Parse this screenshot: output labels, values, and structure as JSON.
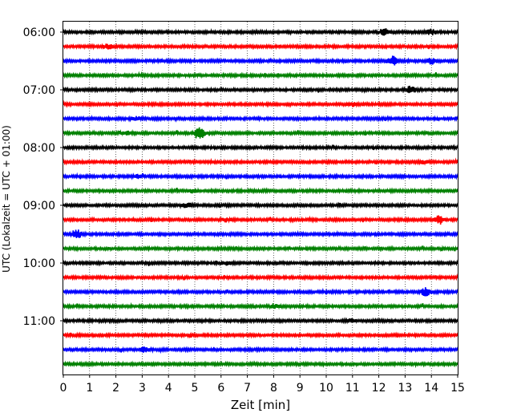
{
  "chart_data": {
    "type": "line",
    "title": "",
    "xlabel": "Zeit  [min]",
    "ylabel": "UTC (Lokalzeit = UTC + 01:00)",
    "xlim": [
      0,
      15
    ],
    "x_ticks": [
      "0",
      "1",
      "2",
      "3",
      "4",
      "5",
      "6",
      "7",
      "8",
      "9",
      "10",
      "11",
      "12",
      "13",
      "14",
      "15"
    ],
    "y_ticks": [
      "06:00",
      "07:00",
      "08:00",
      "09:00",
      "10:00",
      "11:00"
    ],
    "grid": "vertical dotted",
    "row_interval_min": 15,
    "trace_colors": [
      "#000000",
      "#ff0000",
      "#0000ff",
      "#008000"
    ],
    "traces": [
      {
        "start": "06:00",
        "color": "#000000",
        "events": [
          {
            "t": 12.2,
            "amp": 2.5
          },
          {
            "t": 14.0,
            "amp": 1.8
          }
        ]
      },
      {
        "start": "06:15",
        "color": "#ff0000",
        "events": [
          {
            "t": 1.7,
            "amp": 1.5
          }
        ]
      },
      {
        "start": "06:30",
        "color": "#0000ff",
        "events": [
          {
            "t": 12.5,
            "amp": 3.5
          },
          {
            "t": 14.0,
            "amp": 2.0
          }
        ]
      },
      {
        "start": "06:45",
        "color": "#008000",
        "events": []
      },
      {
        "start": "07:00",
        "color": "#000000",
        "events": [
          {
            "t": 13.2,
            "amp": 2.5
          }
        ]
      },
      {
        "start": "07:15",
        "color": "#ff0000",
        "events": [
          {
            "t": 11.0,
            "amp": 1.2
          }
        ]
      },
      {
        "start": "07:30",
        "color": "#0000ff",
        "events": [
          {
            "t": 2.8,
            "amp": 1.2
          }
        ]
      },
      {
        "start": "07:45",
        "color": "#008000",
        "events": [
          {
            "t": 5.2,
            "amp": 4.5
          },
          {
            "t": 2.4,
            "amp": 1.5
          }
        ]
      },
      {
        "start": "08:00",
        "color": "#000000",
        "events": []
      },
      {
        "start": "08:15",
        "color": "#ff0000",
        "events": [
          {
            "t": 13.7,
            "amp": 1.0
          }
        ]
      },
      {
        "start": "08:30",
        "color": "#0000ff",
        "events": [
          {
            "t": 2.9,
            "amp": 1.5
          }
        ]
      },
      {
        "start": "08:45",
        "color": "#008000",
        "events": [
          {
            "t": 4.9,
            "amp": 1.2
          }
        ]
      },
      {
        "start": "09:00",
        "color": "#000000",
        "events": [
          {
            "t": 4.7,
            "amp": 1.5
          }
        ]
      },
      {
        "start": "09:15",
        "color": "#ff0000",
        "events": [
          {
            "t": 14.3,
            "amp": 3.0
          },
          {
            "t": 6.2,
            "amp": 1.2
          }
        ]
      },
      {
        "start": "09:30",
        "color": "#0000ff",
        "events": [
          {
            "t": 0.5,
            "amp": 3.5
          }
        ]
      },
      {
        "start": "09:45",
        "color": "#008000",
        "events": []
      },
      {
        "start": "10:00",
        "color": "#000000",
        "events": [
          {
            "t": 6.2,
            "amp": 1.2
          }
        ]
      },
      {
        "start": "10:15",
        "color": "#ff0000",
        "events": []
      },
      {
        "start": "10:30",
        "color": "#0000ff",
        "events": [
          {
            "t": 13.8,
            "amp": 3.0
          }
        ]
      },
      {
        "start": "10:45",
        "color": "#008000",
        "events": [
          {
            "t": 8.0,
            "amp": 1.5
          }
        ]
      },
      {
        "start": "11:00",
        "color": "#000000",
        "events": [
          {
            "t": 10.9,
            "amp": 1.2
          }
        ]
      },
      {
        "start": "11:15",
        "color": "#ff0000",
        "events": []
      },
      {
        "start": "11:30",
        "color": "#0000ff",
        "events": [
          {
            "t": 3.1,
            "amp": 1.5
          }
        ]
      },
      {
        "start": "11:45",
        "color": "#008000",
        "events": []
      }
    ]
  }
}
